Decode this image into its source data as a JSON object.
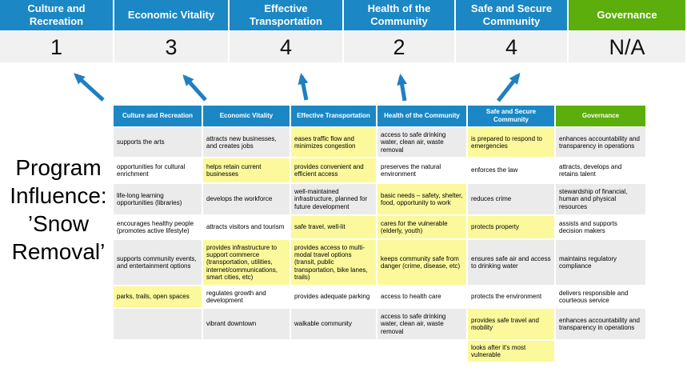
{
  "title": {
    "full": "Program Influence: ’Snow Removal’",
    "lines": [
      "Program",
      "Influence:",
      "’Snow",
      "Removal’"
    ]
  },
  "summary": {
    "columns": [
      {
        "label": "Culture and Recreation",
        "score": "1"
      },
      {
        "label": "Economic Vitality",
        "score": "3"
      },
      {
        "label": "Effective Transportation",
        "score": "4"
      },
      {
        "label": "Health of the Community",
        "score": "2"
      },
      {
        "label": "Safe and Secure Community",
        "score": "4"
      },
      {
        "label": "Governance",
        "score": "N/A"
      }
    ]
  },
  "matrix": {
    "headers": [
      "Culture and Recreation",
      "Economic Vitality",
      "Effective Transportation",
      "Health of the Community",
      "Safe and Secure Community",
      "Governance"
    ],
    "rows": [
      [
        {
          "text": "supports the arts",
          "hl": false
        },
        {
          "text": "attracts new businesses, and creates jobs",
          "hl": false
        },
        {
          "text": "eases traffic flow and minimizes congestion",
          "hl": true
        },
        {
          "text": "access to safe drinking water, clean air, waste removal",
          "hl": false
        },
        {
          "text": "is prepared to respond to emergencies",
          "hl": true
        },
        {
          "text": "enhances accountability and transparency in operations",
          "hl": false
        }
      ],
      [
        {
          "text": "opportunities for cultural enrichment",
          "hl": false
        },
        {
          "text": "helps retain current businesses",
          "hl": true
        },
        {
          "text": "provides convenient and efficient access",
          "hl": true
        },
        {
          "text": "preserves the natural environment",
          "hl": false
        },
        {
          "text": "enforces the law",
          "hl": false
        },
        {
          "text": "attracts, develops and retains talent",
          "hl": false
        }
      ],
      [
        {
          "text": "life-long learning opportunities (libraries)",
          "hl": false
        },
        {
          "text": "develops the workforce",
          "hl": false
        },
        {
          "text": "well-maintained infrastructure, planned for future development",
          "hl": false
        },
        {
          "text": "basic needs – safety, shelter, food, opportunity to work",
          "hl": true
        },
        {
          "text": "reduces crime",
          "hl": false
        },
        {
          "text": "stewardship of financial, human and physical resources",
          "hl": false
        }
      ],
      [
        {
          "text": "encourages healthy people (promotes active lifestyle)",
          "hl": false
        },
        {
          "text": "attracts visitors and tourism",
          "hl": false
        },
        {
          "text": "safe travel, well-lit",
          "hl": true
        },
        {
          "text": "cares for the vulnerable (elderly, youth)",
          "hl": true
        },
        {
          "text": "protects property",
          "hl": true
        },
        {
          "text": "assists and supports decision makers",
          "hl": false
        }
      ],
      [
        {
          "text": "supports community events, and entertainment options",
          "hl": false
        },
        {
          "text": "provides infrastructure to support commerce (transportation, utilities, internet/communications, smart cities, etc)",
          "hl": true
        },
        {
          "text": "provides access to multi-modal travel options (transit, public transportation, bike lanes, trails)",
          "hl": true
        },
        {
          "text": "keeps community safe from danger (crime, disease, etc)",
          "hl": true
        },
        {
          "text": "ensures safe air and access to drinking water",
          "hl": false
        },
        {
          "text": "maintains regulatory compliance",
          "hl": false
        }
      ],
      [
        {
          "text": "parks, trails, open spaces",
          "hl": true
        },
        {
          "text": "regulates growth and development",
          "hl": false
        },
        {
          "text": "provides adequate parking",
          "hl": false
        },
        {
          "text": "access to health care",
          "hl": false
        },
        {
          "text": "protects the environment",
          "hl": false
        },
        {
          "text": "delivers responsible and courteous service",
          "hl": false
        }
      ],
      [
        {
          "text": "",
          "hl": false
        },
        {
          "text": "vibrant downtown",
          "hl": false
        },
        {
          "text": "walkable community",
          "hl": false
        },
        {
          "text": "access to safe drinking water, clean air, waste removal",
          "hl": false
        },
        {
          "text": "provides safe travel and mobility",
          "hl": true
        },
        {
          "text": "enhances accountability and transparency in operations",
          "hl": false
        }
      ],
      [
        {
          "text": "",
          "hl": false
        },
        {
          "text": "",
          "hl": false
        },
        {
          "text": "",
          "hl": false
        },
        {
          "text": "",
          "hl": false
        },
        {
          "text": "looks after it's most vulnerable",
          "hl": true
        },
        {
          "text": "",
          "hl": false
        }
      ]
    ]
  },
  "colors": {
    "header-blue": "#1B87C4",
    "gov-green": "#5CAE0C",
    "score-bg": "#F1F1F1",
    "band-gray": "#EBEBEB",
    "hl-yellow": "#FBF99B",
    "arrow-blue": "#1E7FC2"
  }
}
